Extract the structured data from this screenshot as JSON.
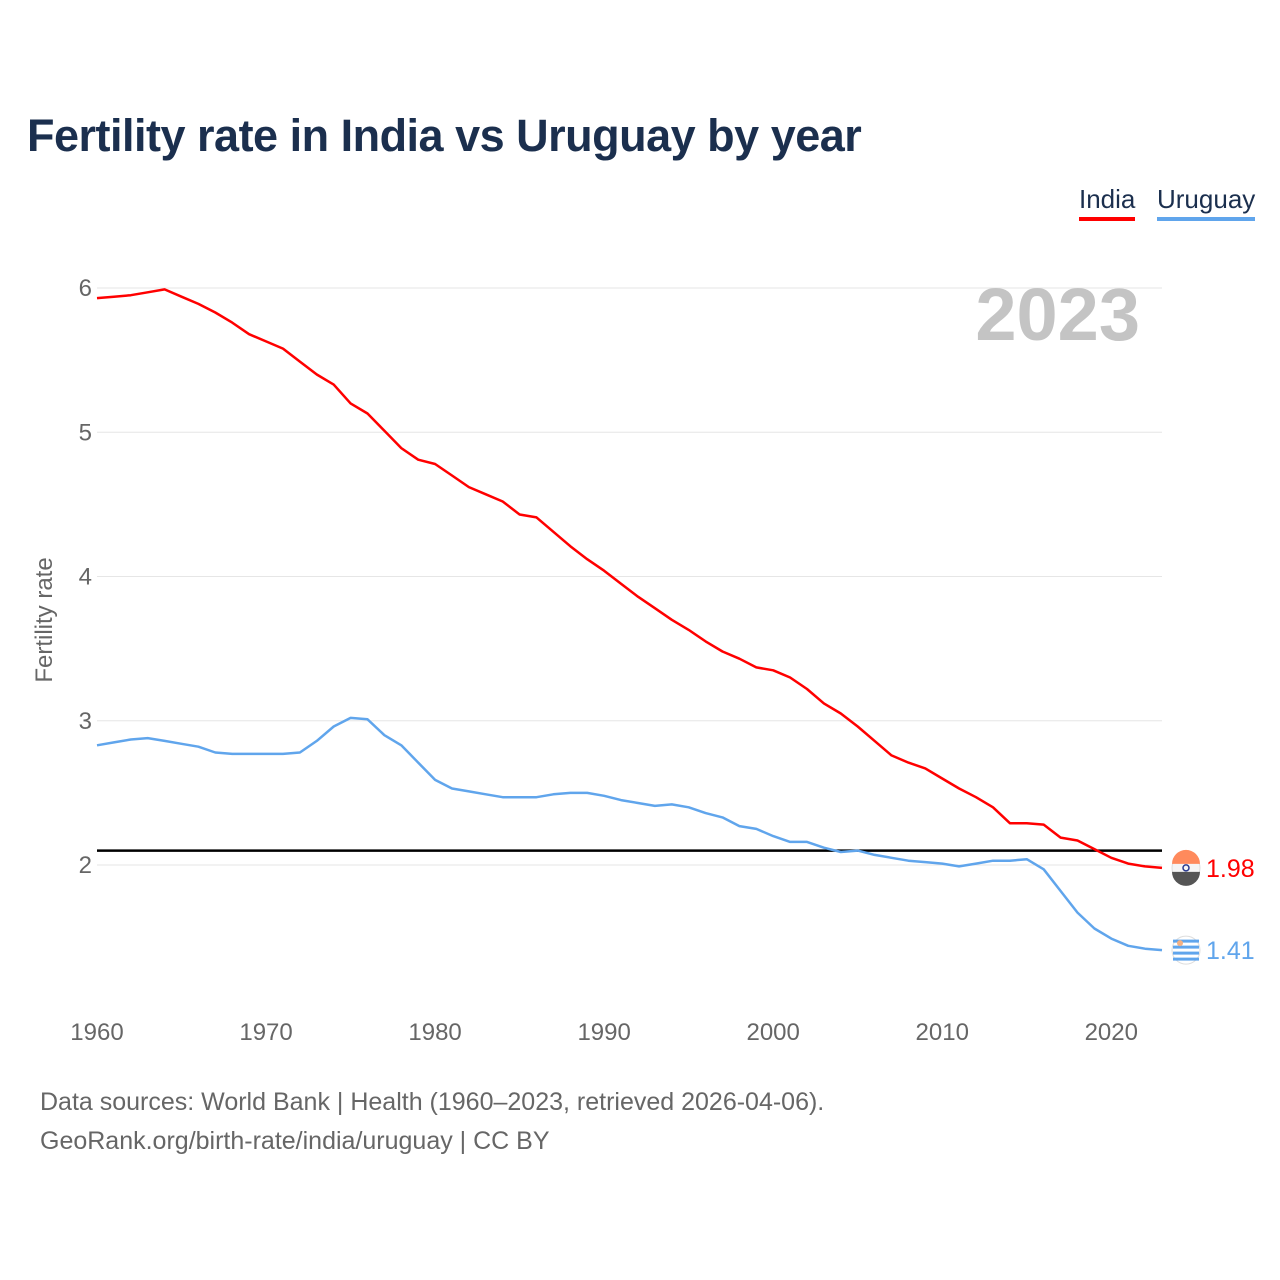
{
  "chart_data": {
    "type": "line",
    "title": "Fertility rate in India vs Uruguay by year",
    "xlabel": "",
    "ylabel": "Fertility rate",
    "xlim": [
      1960,
      2023
    ],
    "ylim": [
      1.2,
      6.1
    ],
    "yticks": [
      "2",
      "3",
      "4",
      "5",
      "6"
    ],
    "xticks": [
      "1960",
      "1970",
      "1980",
      "1990",
      "2000",
      "2010",
      "2020"
    ],
    "year_label": "2023",
    "reference_line": 2.1,
    "legend_placement": "top-right",
    "x": [
      1960,
      1961,
      1962,
      1963,
      1964,
      1965,
      1966,
      1967,
      1968,
      1969,
      1970,
      1971,
      1972,
      1973,
      1974,
      1975,
      1976,
      1977,
      1978,
      1979,
      1980,
      1981,
      1982,
      1983,
      1984,
      1985,
      1986,
      1987,
      1988,
      1989,
      1990,
      1991,
      1992,
      1993,
      1994,
      1995,
      1996,
      1997,
      1998,
      1999,
      2000,
      2001,
      2002,
      2003,
      2004,
      2005,
      2006,
      2007,
      2008,
      2009,
      2010,
      2011,
      2012,
      2013,
      2014,
      2015,
      2016,
      2017,
      2018,
      2019,
      2020,
      2021,
      2022,
      2023
    ],
    "series": [
      {
        "name": "India",
        "color": "#ff0000",
        "end_label": "1.98",
        "values": [
          5.93,
          5.94,
          5.95,
          5.97,
          5.99,
          5.94,
          5.89,
          5.83,
          5.76,
          5.68,
          5.63,
          5.58,
          5.49,
          5.4,
          5.33,
          5.2,
          5.13,
          5.01,
          4.89,
          4.81,
          4.78,
          4.7,
          4.62,
          4.57,
          4.52,
          4.43,
          4.41,
          4.31,
          4.21,
          4.12,
          4.04,
          3.95,
          3.86,
          3.78,
          3.7,
          3.63,
          3.55,
          3.48,
          3.43,
          3.37,
          3.35,
          3.3,
          3.22,
          3.12,
          3.05,
          2.96,
          2.86,
          2.76,
          2.71,
          2.67,
          2.6,
          2.53,
          2.47,
          2.4,
          2.29,
          2.29,
          2.28,
          2.19,
          2.17,
          2.11,
          2.05,
          2.01,
          1.99,
          1.98
        ]
      },
      {
        "name": "Uruguay",
        "color": "#60a5ec",
        "end_label": "1.41",
        "values": [
          2.83,
          2.85,
          2.87,
          2.88,
          2.86,
          2.84,
          2.82,
          2.78,
          2.77,
          2.77,
          2.77,
          2.77,
          2.78,
          2.86,
          2.96,
          3.02,
          3.01,
          2.9,
          2.83,
          2.71,
          2.59,
          2.53,
          2.51,
          2.49,
          2.47,
          2.47,
          2.47,
          2.49,
          2.5,
          2.5,
          2.48,
          2.45,
          2.43,
          2.41,
          2.42,
          2.4,
          2.36,
          2.33,
          2.27,
          2.25,
          2.2,
          2.16,
          2.16,
          2.12,
          2.09,
          2.1,
          2.07,
          2.05,
          2.03,
          2.02,
          2.01,
          1.99,
          2.01,
          2.03,
          2.03,
          2.04,
          1.97,
          1.82,
          1.67,
          1.56,
          1.49,
          1.44,
          1.42,
          1.41
        ]
      }
    ]
  },
  "footer": {
    "line1": "Data sources: World Bank | Health (1960–2023, retrieved 2026-04-06).",
    "line2": "GeoRank.org/birth-rate/india/uruguay | CC BY"
  }
}
